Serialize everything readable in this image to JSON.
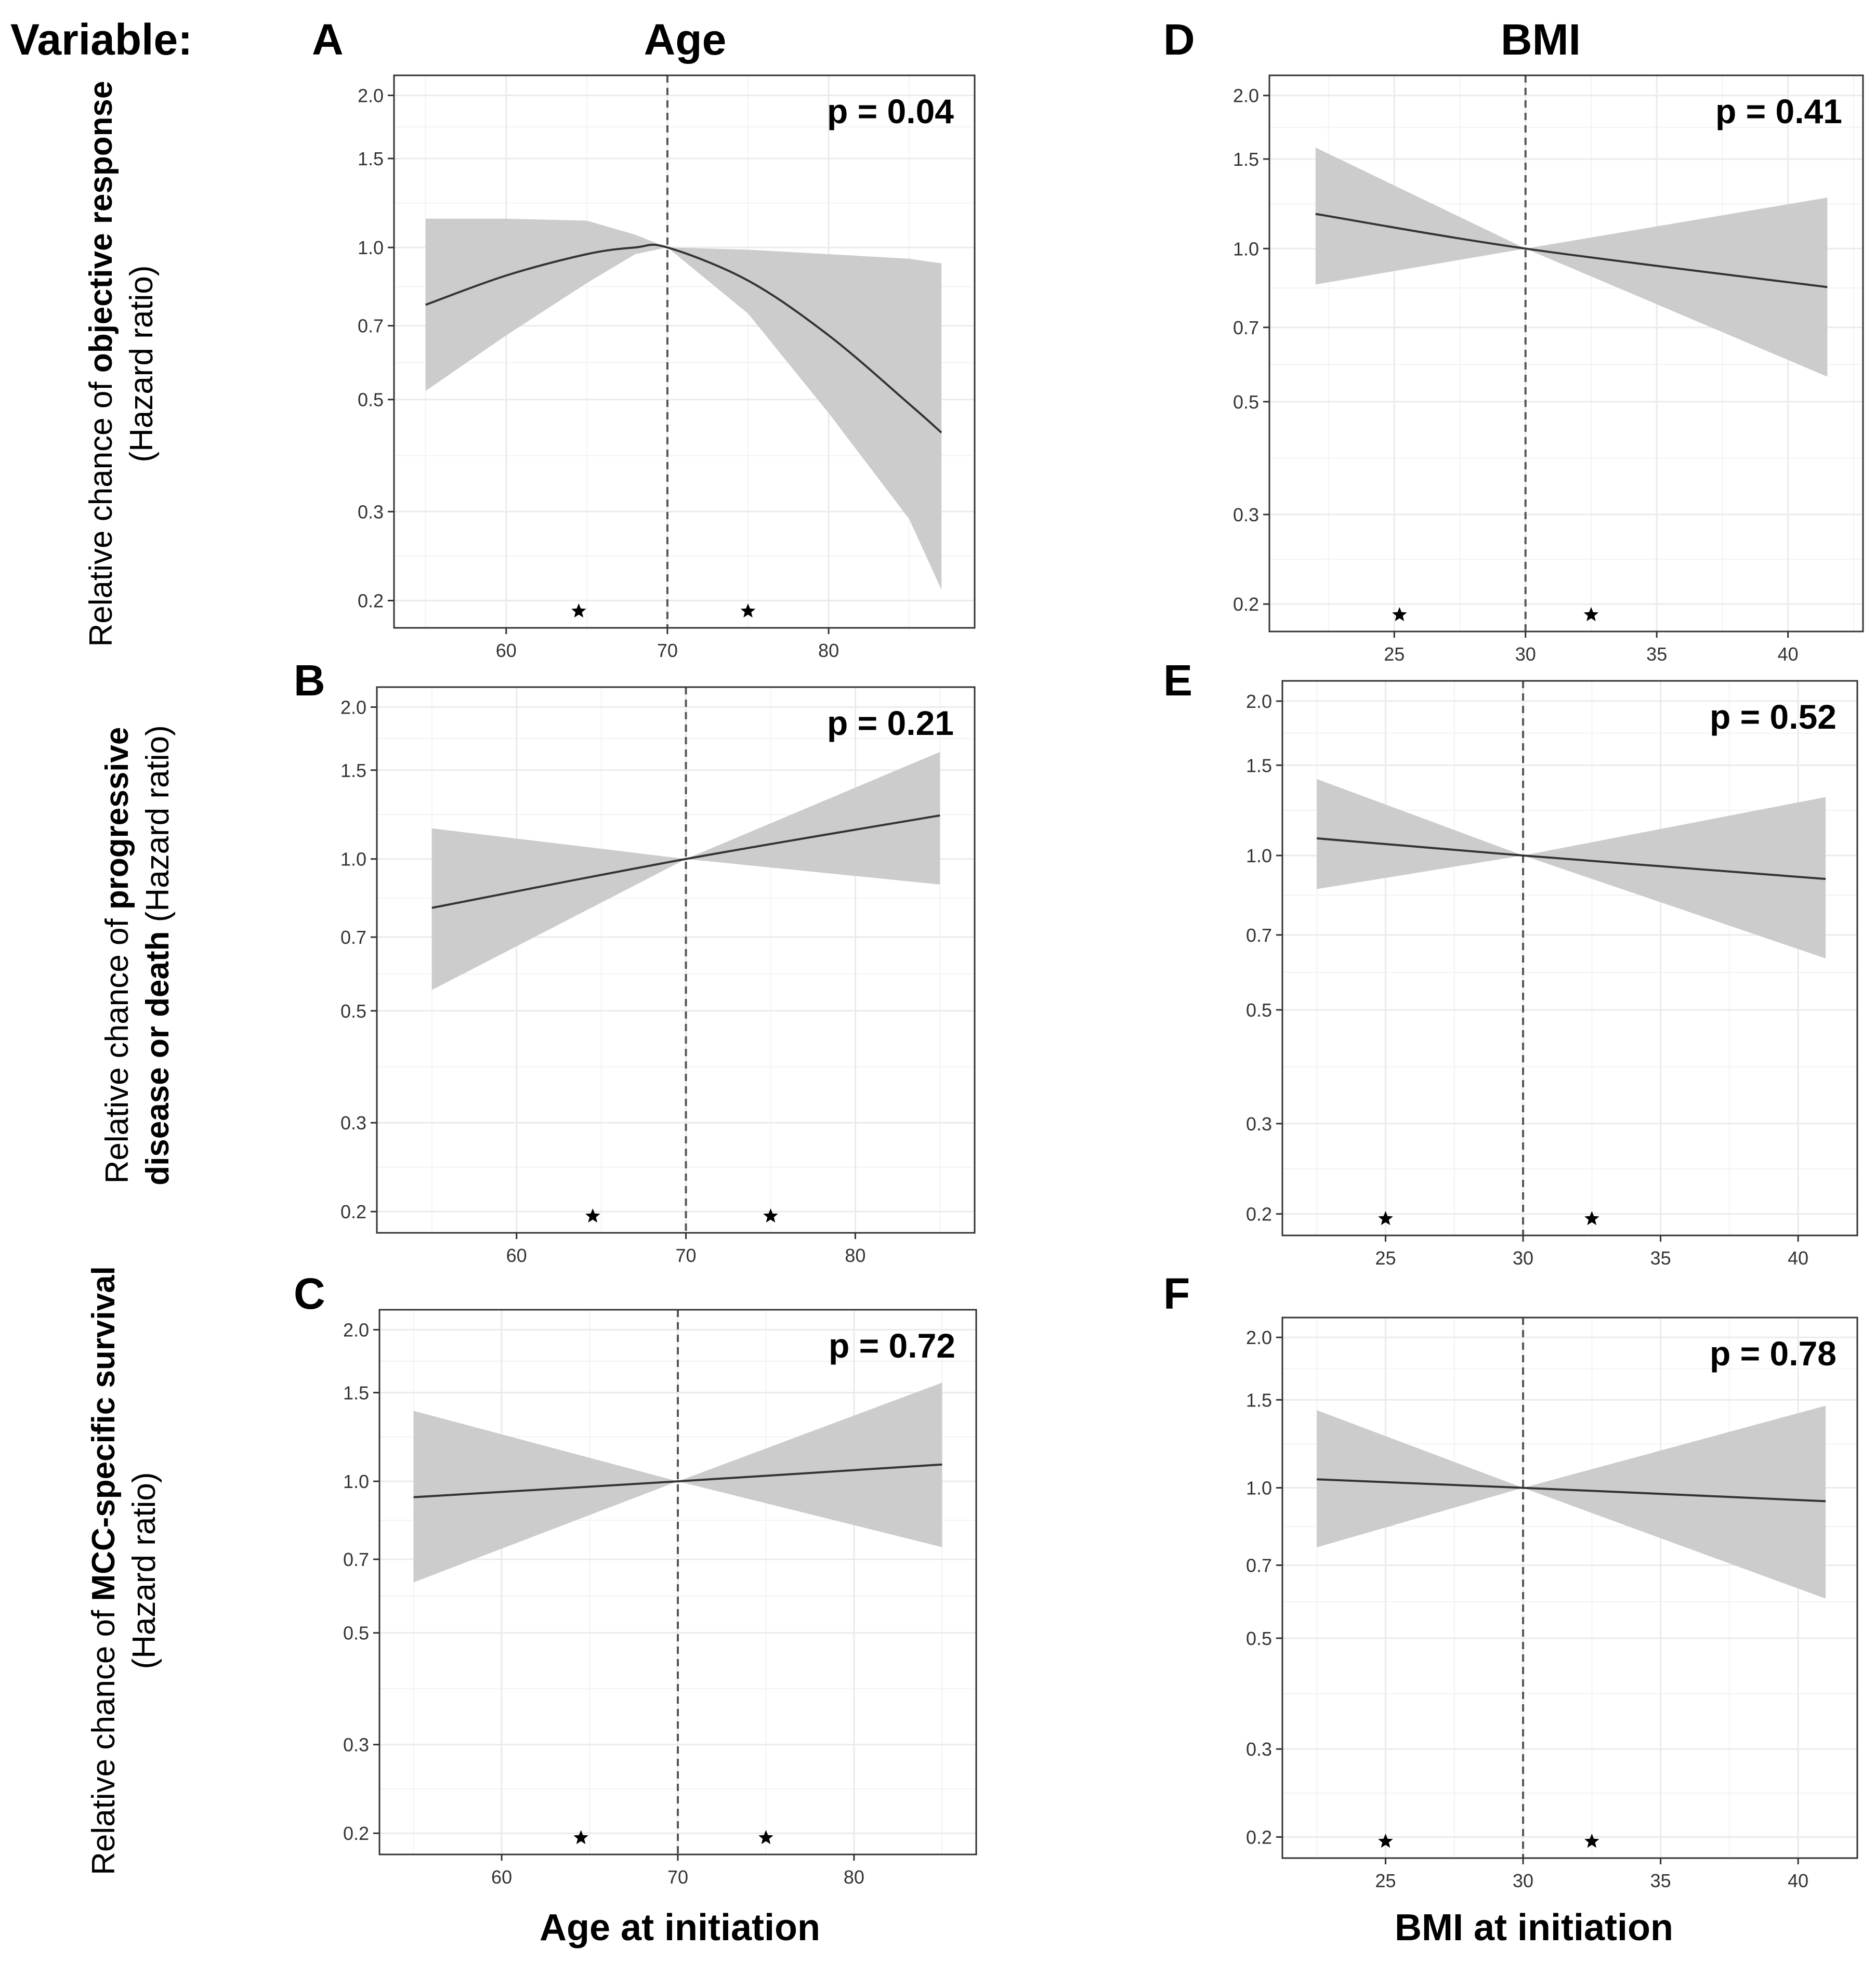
{
  "figure": {
    "variable_label": "Variable:",
    "column_titles": [
      "Age",
      "BMI"
    ],
    "x_axis_titles": [
      "Age at initiation",
      "BMI at initiation"
    ],
    "row_labels": [
      {
        "lines": [
          [
            {
              "t": "Relative chance of ",
              "b": false
            },
            {
              "t": "objective response",
              "b": true
            }
          ],
          [
            {
              "t": "(Hazard ratio)",
              "b": false
            }
          ]
        ]
      },
      {
        "lines": [
          [
            {
              "t": "Relative chance of ",
              "b": false
            },
            {
              "t": "progressive",
              "b": true
            }
          ],
          [
            {
              "t": "disease or death",
              "b": true
            },
            {
              "t": " (Hazard ratio)",
              "b": false
            }
          ]
        ]
      },
      {
        "lines": [
          [
            {
              "t": "Relative chance of ",
              "b": false
            },
            {
              "t": "MCC-specific survival",
              "b": true
            }
          ],
          [
            {
              "t": "(Hazard ratio)",
              "b": false
            }
          ]
        ]
      }
    ],
    "colors": {
      "ribbon": "#cccccc",
      "line": "#333333",
      "grid": "#ebebeb",
      "border": "#333333",
      "reference_line": "#555555"
    }
  },
  "chart_data": [
    {
      "panel": "A",
      "type": "line",
      "variable": "Age",
      "outcome": "objective response",
      "p_label": "p = 0.04",
      "y_scale": "log",
      "x_ticks": [
        60,
        70,
        80
      ],
      "y_ticks": [
        0.2,
        0.3,
        0.5,
        0.7,
        1.0,
        1.5,
        2.0
      ],
      "xlim": [
        53.3,
        88.8
      ],
      "ylim": [
        0.18,
        2.15
      ],
      "reference_x": 70,
      "knots_x": [
        64.5,
        75
      ],
      "x": [
        55,
        60,
        65,
        68,
        70,
        75,
        80,
        85,
        87
      ],
      "y": [
        0.77,
        0.88,
        0.97,
        1.0,
        1.0,
        0.86,
        0.67,
        0.49,
        0.43
      ],
      "y_lower": [
        0.52,
        0.67,
        0.85,
        0.97,
        1.0,
        0.74,
        0.47,
        0.29,
        0.21
      ],
      "y_upper": [
        1.14,
        1.14,
        1.13,
        1.06,
        1.0,
        0.99,
        0.97,
        0.95,
        0.93
      ]
    },
    {
      "panel": "B",
      "type": "line",
      "variable": "Age",
      "outcome": "progressive disease or death",
      "p_label": "p = 0.21",
      "y_scale": "log",
      "x_ticks": [
        60,
        70,
        80
      ],
      "y_ticks": [
        0.2,
        0.3,
        0.5,
        0.7,
        1.0,
        1.5,
        2.0
      ],
      "xlim": [
        52,
        86.8
      ],
      "ylim": [
        0.185,
        2.15
      ],
      "reference_x": 70,
      "knots_x": [
        64.5,
        75
      ],
      "x": [
        55,
        70,
        85
      ],
      "y": [
        0.8,
        1.0,
        1.22
      ],
      "y_lower": [
        0.55,
        1.0,
        0.89
      ],
      "y_upper": [
        1.15,
        1.0,
        1.63
      ]
    },
    {
      "panel": "C",
      "type": "line",
      "variable": "Age",
      "outcome": "MCC-specific survival",
      "p_label": "p = 0.72",
      "y_scale": "log",
      "x_ticks": [
        60,
        70,
        80
      ],
      "y_ticks": [
        0.2,
        0.3,
        0.5,
        0.7,
        1.0,
        1.5,
        2.0
      ],
      "xlim": [
        53.3,
        86.7
      ],
      "ylim": [
        0.185,
        2.15
      ],
      "reference_x": 70,
      "knots_x": [
        64.5,
        75
      ],
      "x": [
        55,
        70,
        85
      ],
      "y": [
        0.93,
        1.0,
        1.08
      ],
      "y_lower": [
        0.63,
        1.0,
        0.74
      ],
      "y_upper": [
        1.38,
        1.0,
        1.57
      ]
    },
    {
      "panel": "D",
      "type": "line",
      "variable": "BMI",
      "outcome": "objective response",
      "p_label": "p = 0.41",
      "y_scale": "log",
      "x_ticks": [
        25,
        30,
        35,
        40
      ],
      "y_ticks": [
        0.2,
        0.3,
        0.5,
        0.7,
        1.0,
        1.5,
        2.0
      ],
      "xlim": [
        20.4,
        42.7
      ],
      "ylim": [
        0.18,
        2.15
      ],
      "reference_x": 30,
      "knots_x": [
        25.2,
        32.5
      ],
      "x": [
        22,
        30,
        41.5
      ],
      "y": [
        1.17,
        1.0,
        0.84
      ],
      "y_lower": [
        0.85,
        1.0,
        0.56
      ],
      "y_upper": [
        1.58,
        1.0,
        1.26
      ]
    },
    {
      "panel": "E",
      "type": "line",
      "variable": "BMI",
      "outcome": "progressive disease or death",
      "p_label": "p = 0.52",
      "y_scale": "log",
      "x_ticks": [
        25,
        30,
        35,
        40
      ],
      "y_ticks": [
        0.2,
        0.3,
        0.5,
        0.7,
        1.0,
        1.5,
        2.0
      ],
      "xlim": [
        21.4,
        42
      ],
      "ylim": [
        0.185,
        2.15
      ],
      "reference_x": 30,
      "knots_x": [
        25,
        32.5
      ],
      "x": [
        22.5,
        30,
        41
      ],
      "y": [
        1.08,
        1.0,
        0.9
      ],
      "y_lower": [
        0.86,
        1.0,
        0.63
      ],
      "y_upper": [
        1.41,
        1.0,
        1.3
      ]
    },
    {
      "panel": "F",
      "type": "line",
      "variable": "BMI",
      "outcome": "MCC-specific survival",
      "p_label": "p = 0.78",
      "y_scale": "log",
      "x_ticks": [
        25,
        30,
        35,
        40
      ],
      "y_ticks": [
        0.2,
        0.3,
        0.5,
        0.7,
        1.0,
        1.5,
        2.0
      ],
      "xlim": [
        21.4,
        42
      ],
      "ylim": [
        0.185,
        2.15
      ],
      "reference_x": 30,
      "knots_x": [
        25,
        32.5
      ],
      "x": [
        22.5,
        30,
        41
      ],
      "y": [
        1.04,
        1.0,
        0.94
      ],
      "y_lower": [
        0.76,
        1.0,
        0.6
      ],
      "y_upper": [
        1.43,
        1.0,
        1.46
      ]
    }
  ]
}
